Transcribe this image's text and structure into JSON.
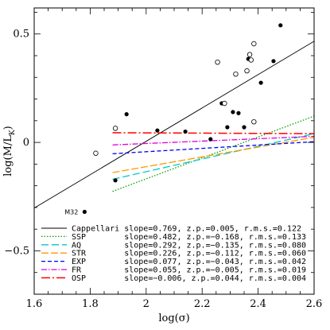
{
  "chart_data": {
    "type": "scatter",
    "title": "",
    "xlabel": "log(σ)",
    "ylabel_main": "log(M/L",
    "ylabel_sub": "K",
    "ylabel_close": ")",
    "xlim": [
      1.6,
      2.6
    ],
    "ylim": [
      -0.7,
      0.62
    ],
    "x_ticks": [
      1.6,
      1.8,
      2.0,
      2.2,
      2.4,
      2.6
    ],
    "x_tick_labels": [
      "1.6",
      "1.8",
      "2",
      "2.2",
      "2.4",
      "2.6"
    ],
    "y_ticks": [
      -0.5,
      0,
      0.5
    ],
    "y_tick_labels": [
      "−0.5",
      "0",
      "0.5"
    ],
    "grid": false,
    "legend_position": "bottom-right",
    "annotation": {
      "text": "M32",
      "x": 1.78,
      "y": -0.32
    },
    "filled_points": [
      {
        "x": 1.78,
        "y": -0.32
      },
      {
        "x": 1.89,
        "y": -0.175
      },
      {
        "x": 1.93,
        "y": 0.13
      },
      {
        "x": 2.04,
        "y": 0.055
      },
      {
        "x": 2.14,
        "y": 0.05
      },
      {
        "x": 2.23,
        "y": 0.015
      },
      {
        "x": 2.27,
        "y": 0.18
      },
      {
        "x": 2.29,
        "y": 0.07
      },
      {
        "x": 2.31,
        "y": 0.14
      },
      {
        "x": 2.33,
        "y": 0.135
      },
      {
        "x": 2.35,
        "y": 0.07
      },
      {
        "x": 2.365,
        "y": 0.385
      },
      {
        "x": 2.41,
        "y": 0.275
      },
      {
        "x": 2.455,
        "y": 0.375
      },
      {
        "x": 2.48,
        "y": 0.54
      }
    ],
    "open_points": [
      {
        "x": 1.82,
        "y": -0.05
      },
      {
        "x": 1.89,
        "y": 0.065
      },
      {
        "x": 2.255,
        "y": 0.37
      },
      {
        "x": 2.28,
        "y": 0.18
      },
      {
        "x": 2.32,
        "y": 0.315
      },
      {
        "x": 2.36,
        "y": 0.33
      },
      {
        "x": 2.37,
        "y": 0.405
      },
      {
        "x": 2.375,
        "y": 0.38
      },
      {
        "x": 2.385,
        "y": 0.455
      },
      {
        "x": 2.385,
        "y": 0.095
      }
    ],
    "series": [
      {
        "name": "Cappellari",
        "slope": 0.769,
        "zp": 0.005,
        "x_from": 1.6,
        "x_to": 2.6,
        "color": "#000000",
        "dash": "",
        "width": 0.9,
        "label": "Cappellari slope=0.769, z.p.=0.005, r.m.s.=0.122"
      },
      {
        "name": "SSP",
        "slope": 0.482,
        "zp": -0.168,
        "x_from": 1.88,
        "x_to": 2.6,
        "color": "#00a000",
        "dash": "1.5,2",
        "width": 1.3,
        "label": "SSP        slope=0.482, z.p.=−0.168, r.m.s.=0.133"
      },
      {
        "name": "AQ",
        "slope": 0.292,
        "zp": -0.135,
        "x_from": 1.88,
        "x_to": 2.6,
        "color": "#00c8c8",
        "dash": "9,4",
        "width": 1.3,
        "label": "AQ         slope=0.292, z.p.=−0.135, r.m.s.=0.080"
      },
      {
        "name": "STR",
        "slope": 0.226,
        "zp": -0.112,
        "x_from": 1.88,
        "x_to": 2.6,
        "color": "#ff9900",
        "dash": "9,3",
        "width": 1.3,
        "label": "STR        slope=0.226, z.p.=−0.112, r.m.s.=0.060"
      },
      {
        "name": "EXP",
        "slope": 0.077,
        "zp": -0.043,
        "x_from": 1.88,
        "x_to": 2.6,
        "color": "#0000ff",
        "dash": "5,3",
        "width": 1.3,
        "label": "EXP        slope=0.077, z.p.=−0.043, r.m.s.=0.042"
      },
      {
        "name": "FR",
        "slope": 0.055,
        "zp": -0.005,
        "x_from": 1.88,
        "x_to": 2.6,
        "color": "#dd00dd",
        "dash": "7,2,1.5,2",
        "width": 1.3,
        "label": "FR         slope=0.055, z.p.=−0.005, r.m.s.=0.019"
      },
      {
        "name": "OSP",
        "slope": -0.006,
        "zp": 0.044,
        "x_from": 1.88,
        "x_to": 2.6,
        "color": "#ff0000",
        "dash": "11,3,2,3",
        "width": 1.5,
        "label": "OSP        slope=−0.006, z.p.=0.044, r.m.s.=0.004"
      }
    ]
  }
}
